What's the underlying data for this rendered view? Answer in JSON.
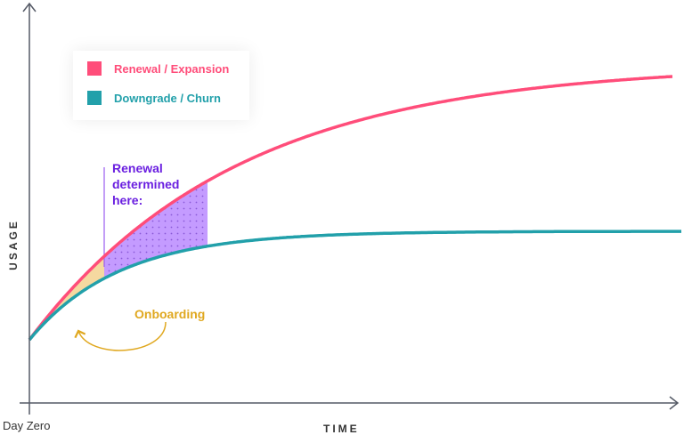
{
  "legend": [
    {
      "label": "Renewal / Expansion",
      "color": "#ff4d7a"
    },
    {
      "label": "Downgrade / Churn",
      "color": "#22a0aa"
    }
  ],
  "annotations": {
    "renewal_line1": "Renewal",
    "renewal_line2": "determined",
    "renewal_line3": "here:",
    "onboarding": "Onboarding"
  },
  "axes": {
    "y_label": "USAGE",
    "x_label": "TIME",
    "x_origin_label": "Day Zero"
  },
  "colors": {
    "renewal": "#ff4d7a",
    "churn": "#22a0aa",
    "annotation": "#6a1fe0",
    "onboarding": "#e0a820",
    "highlight": "#c49bff",
    "onboarding_fill": "#f5d9a0",
    "axis": "#555a66"
  }
}
